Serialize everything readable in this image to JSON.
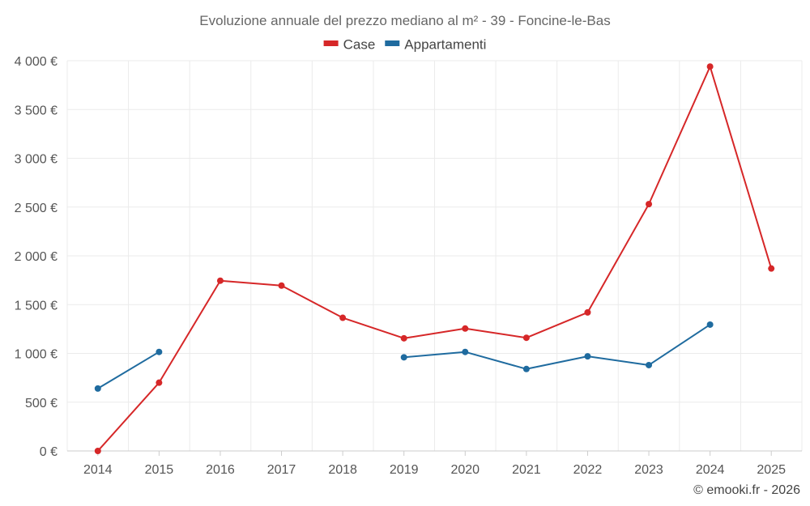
{
  "chart_data": {
    "type": "line",
    "title": "Evoluzione annuale del prezzo mediano al m² - 39 - Foncine-le-Bas",
    "categories": [
      "2014",
      "2015",
      "2016",
      "2017",
      "2018",
      "2019",
      "2020",
      "2021",
      "2022",
      "2023",
      "2024",
      "2025"
    ],
    "y_tick_values": [
      0,
      500,
      1000,
      1500,
      2000,
      2500,
      3000,
      3500,
      4000
    ],
    "y_tick_labels": [
      "0 €",
      "500 €",
      "1 000 €",
      "1 500 €",
      "2 000 €",
      "2 500 €",
      "3 000 €",
      "3 500 €",
      "4 000 €"
    ],
    "ylim": [
      0,
      4000
    ],
    "grid": true,
    "legend_position": "top-center",
    "series": [
      {
        "name": "Case",
        "color": "#d62728",
        "values": [
          0,
          700,
          1745,
          1695,
          1365,
          1155,
          1255,
          1160,
          1420,
          2530,
          3940,
          1870
        ]
      },
      {
        "name": "Appartamenti",
        "color": "#1f6b9f",
        "values": [
          640,
          1015,
          null,
          null,
          null,
          960,
          1015,
          840,
          970,
          880,
          1295,
          null
        ]
      }
    ]
  },
  "credit": "© emooki.fr - 2026"
}
